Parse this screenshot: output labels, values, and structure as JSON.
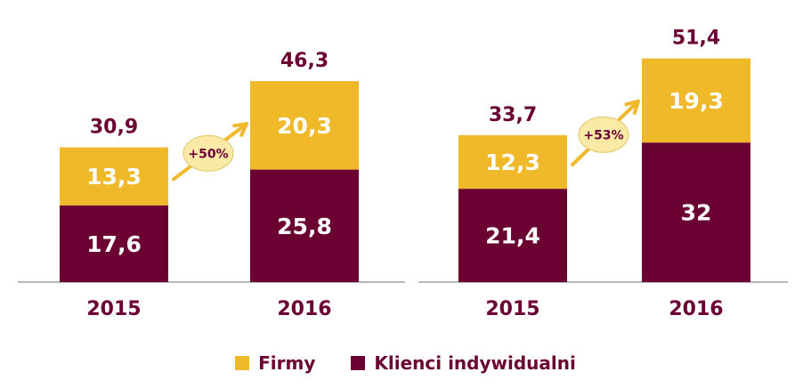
{
  "chart_data": [
    {
      "type": "bar",
      "stacked": true,
      "categories": [
        "2015",
        "2016"
      ],
      "series": [
        {
          "name": "Klienci indywidualni",
          "values": [
            17.6,
            25.8
          ],
          "labels": [
            "17,6",
            "25,8"
          ]
        },
        {
          "name": "Firmy",
          "values": [
            13.3,
            20.3
          ],
          "labels": [
            "13,3",
            "20,3"
          ]
        }
      ],
      "totals": [
        30.9,
        46.3
      ],
      "total_labels": [
        "30,9",
        "46,3"
      ],
      "growth_label": "+50%"
    },
    {
      "type": "bar",
      "stacked": true,
      "categories": [
        "2015",
        "2016"
      ],
      "series": [
        {
          "name": "Klienci indywidualni",
          "values": [
            21.4,
            32
          ],
          "labels": [
            "21,4",
            "32"
          ]
        },
        {
          "name": "Firmy",
          "values": [
            12.3,
            19.3
          ],
          "labels": [
            "12,3",
            "19,3"
          ]
        }
      ],
      "totals": [
        33.7,
        51.4
      ],
      "total_labels": [
        "33,7",
        "51,4"
      ],
      "growth_label": "+53%"
    }
  ],
  "colors": {
    "firmy": "#f0b929",
    "klienci": "#6b0033",
    "label_dark": "#6b0033",
    "axis": "#a0a0a0",
    "arrow": "#f0b929",
    "badge_fill": "#fbe9a6",
    "badge_stroke": "#e3c766"
  },
  "legend": {
    "firmy": "Firmy",
    "klienci": "Klienci indywidualni"
  }
}
